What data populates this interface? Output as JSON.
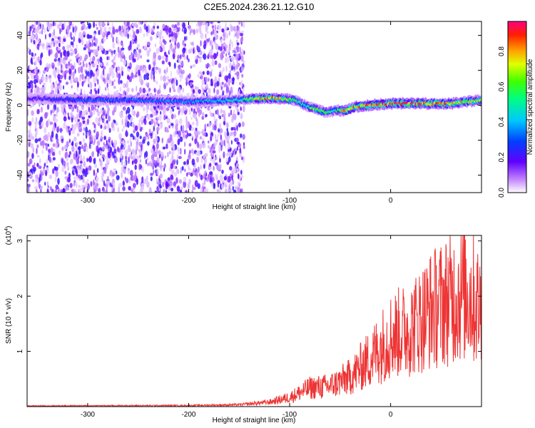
{
  "title": "C2E5.2024.236.21.12.G10",
  "chart_data": [
    {
      "type": "heatmap",
      "xlabel": "Height of straight line (km)",
      "ylabel": "Frequency (Hz)",
      "xlim": [
        -360,
        90
      ],
      "ylim": [
        -50,
        48
      ],
      "xticks": [
        -300,
        -200,
        -100,
        0
      ],
      "xtick_labels": [
        "-300",
        "-200",
        "-100",
        "0"
      ],
      "yticks": [
        -40,
        -20,
        0,
        20,
        40
      ],
      "ytick_labels": [
        "-40",
        "-20",
        "0",
        "20",
        "40"
      ],
      "colorbar": {
        "label": "Normalized spectral amplitude",
        "range": [
          0,
          0.97
        ],
        "ticks": [
          0,
          0.2,
          0.4,
          0.6,
          0.8
        ],
        "tick_labels": [
          "0.0",
          "0.2",
          "0.4",
          "0.6",
          "0.8"
        ]
      },
      "ridge_track": {
        "x": [
          -360,
          -300,
          -250,
          -200,
          -150,
          -130,
          -110,
          -95,
          -85,
          -75,
          -65,
          -55,
          -45,
          -35,
          -20,
          0,
          30,
          60,
          90
        ],
        "y": [
          4,
          3,
          3,
          2,
          3,
          4,
          4,
          3,
          0,
          -2,
          -4,
          -3,
          -3,
          -1,
          0,
          1,
          1,
          1,
          3
        ],
        "amplitude": [
          0.2,
          0.35,
          0.35,
          0.4,
          0.5,
          0.85,
          0.85,
          0.6,
          0.5,
          0.7,
          0.6,
          0.5,
          0.9,
          0.85,
          0.9,
          0.95,
          0.92,
          0.85,
          0.7
        ]
      },
      "noise_region_xlim": [
        -360,
        -145
      ]
    },
    {
      "type": "line",
      "xlabel": "Height of straight line (km)",
      "ylabel": "SNR (10 * v/v)",
      "y_scale_note": "(x10^4)",
      "xlim": [
        -360,
        90
      ],
      "ylim": [
        0,
        3.1
      ],
      "xticks": [
        -300,
        -200,
        -100,
        0
      ],
      "xtick_labels": [
        "-300",
        "-200",
        "-100",
        "0"
      ],
      "yticks": [
        1,
        2,
        3
      ],
      "ytick_labels": [
        "1",
        "2",
        "3"
      ],
      "color": "#ee3333",
      "envelope": {
        "x": [
          -360,
          -200,
          -150,
          -120,
          -100,
          -80,
          -60,
          -40,
          -20,
          0,
          20,
          40,
          60,
          75,
          90
        ],
        "y": [
          0.02,
          0.03,
          0.05,
          0.12,
          0.25,
          0.5,
          0.55,
          0.8,
          1.3,
          1.9,
          2.1,
          2.6,
          2.9,
          3.1,
          2.6
        ]
      }
    }
  ]
}
